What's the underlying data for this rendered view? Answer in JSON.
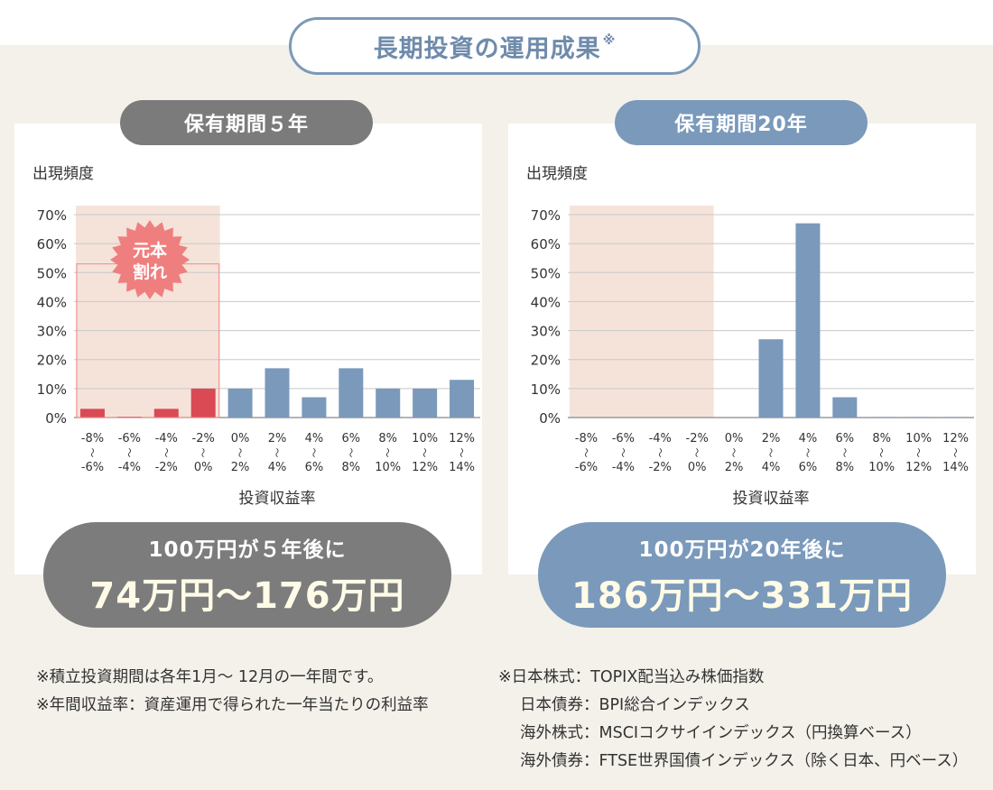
{
  "title": "長期投資の運用成果",
  "title_mark": "※",
  "colors": {
    "blue": "#7a99bb",
    "gray": "#7b7b7c",
    "red": "#d94a55",
    "loss_zone": "#f5e3da",
    "badge": "#ef7f7f"
  },
  "left": {
    "period": "保有期間５年",
    "result_line1": "100万円が５年後に",
    "result_line2": "74万円〜176万円"
  },
  "right": {
    "period": "保有期間20年",
    "result_line1": "100万円が20年後に",
    "result_line2": "186万円〜331万円"
  },
  "badge": {
    "line1": "元本",
    "line2": "割れ"
  },
  "notes_left": [
    "※積立投資期間は各年1月〜 12月の一年間です。",
    "※年間収益率：資産運用で得られた一年当たりの利益率"
  ],
  "notes_right": [
    "※日本株式：TOPIX配当込み株価指数",
    "日本債券：BPI総合インデックス",
    "海外株式：MSCIコクサイインデックス（円換算ベース）",
    "海外債券：FTSE世界国債インデックス（除く日本、円ベース）"
  ],
  "chart_data": [
    {
      "type": "bar",
      "ylabel": "出現頻度",
      "xlabel": "投資収益率",
      "ylim": [
        0,
        70
      ],
      "yticks": [
        0,
        10,
        20,
        30,
        40,
        50,
        60,
        70
      ],
      "ytick_suffix": "%",
      "grid": true,
      "categories": [
        [
          "-8%",
          "〜",
          "-6%"
        ],
        [
          "-6%",
          "〜",
          "-4%"
        ],
        [
          "-4%",
          "〜",
          "-2%"
        ],
        [
          "-2%",
          "〜",
          "0%"
        ],
        [
          "0%",
          "〜",
          "2%"
        ],
        [
          "2%",
          "〜",
          "4%"
        ],
        [
          "4%",
          "〜",
          "6%"
        ],
        [
          "6%",
          "〜",
          "8%"
        ],
        [
          "8%",
          "〜",
          "10%"
        ],
        [
          "10%",
          "〜",
          "12%"
        ],
        [
          "12%",
          "〜",
          "14%"
        ]
      ],
      "values": [
        3,
        0.3,
        3,
        10,
        10,
        17,
        7,
        17,
        10,
        10,
        13
      ],
      "negative_count": 4
    },
    {
      "type": "bar",
      "ylabel": "出現頻度",
      "xlabel": "投資収益率",
      "ylim": [
        0,
        70
      ],
      "yticks": [
        0,
        10,
        20,
        30,
        40,
        50,
        60,
        70
      ],
      "ytick_suffix": "%",
      "grid": true,
      "categories": [
        [
          "-8%",
          "〜",
          "-6%"
        ],
        [
          "-6%",
          "〜",
          "-4%"
        ],
        [
          "-4%",
          "〜",
          "-2%"
        ],
        [
          "-2%",
          "〜",
          "0%"
        ],
        [
          "0%",
          "〜",
          "2%"
        ],
        [
          "2%",
          "〜",
          "4%"
        ],
        [
          "4%",
          "〜",
          "6%"
        ],
        [
          "6%",
          "〜",
          "8%"
        ],
        [
          "8%",
          "〜",
          "10%"
        ],
        [
          "10%",
          "〜",
          "12%"
        ],
        [
          "12%",
          "〜",
          "14%"
        ]
      ],
      "values": [
        0,
        0,
        0,
        0,
        0,
        27,
        67,
        7,
        0.2,
        0.2,
        0.2
      ],
      "negative_count": 4
    }
  ]
}
